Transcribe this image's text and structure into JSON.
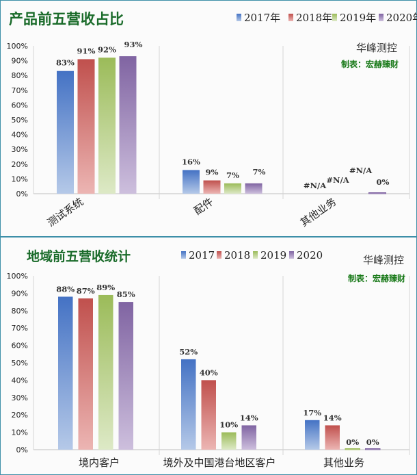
{
  "colors": {
    "s2017": [
      "#4472c4",
      "#b5c9e8"
    ],
    "s2018": [
      "#c0504d",
      "#ecb5b3"
    ],
    "s2019": [
      "#9bbb59",
      "#dde9c6"
    ],
    "s2020": [
      "#8064a2",
      "#cdbfdd"
    ],
    "title": "#1a6b2a",
    "maker": "#1a7a1a",
    "grid": "#d4d4d4"
  },
  "chart_data": [
    {
      "type": "bar",
      "title": "产品前五营收占比",
      "brand": "华峰测控",
      "maker": "制表：宏赫臻财",
      "categories": [
        "测试系统",
        "配件",
        "其他业务"
      ],
      "series": [
        {
          "name": "2017年",
          "values": [
            83,
            16,
            null
          ],
          "labels": [
            "83%",
            "16%",
            "#N/A"
          ]
        },
        {
          "name": "2018年",
          "values": [
            91,
            9,
            null
          ],
          "labels": [
            "91%",
            "9%",
            "#N/A"
          ]
        },
        {
          "name": "2019年",
          "values": [
            92,
            7,
            null
          ],
          "labels": [
            "92%",
            "7%",
            "#N/A"
          ]
        },
        {
          "name": "2020年",
          "values": [
            93,
            7,
            0
          ],
          "labels": [
            "93%",
            "7%",
            "0%"
          ]
        }
      ],
      "ylim": [
        0,
        100
      ],
      "yticks": [
        "0%",
        "10%",
        "20%",
        "30%",
        "40%",
        "50%",
        "60%",
        "70%",
        "80%",
        "90%",
        "100%"
      ],
      "legend": "top-right",
      "grid": "vertical category separators"
    },
    {
      "type": "bar",
      "title": "地域前五营收统计",
      "brand": "华峰测控",
      "maker": "制表：宏赫臻财",
      "categories": [
        "境内客户",
        "境外及中国港台地区客户",
        "其他业务"
      ],
      "series": [
        {
          "name": "2017",
          "values": [
            88,
            52,
            17
          ],
          "labels": [
            "88%",
            "52%",
            "17%"
          ]
        },
        {
          "name": "2018",
          "values": [
            87,
            40,
            14
          ],
          "labels": [
            "87%",
            "40%",
            "14%"
          ]
        },
        {
          "name": "2019",
          "values": [
            89,
            10,
            0
          ],
          "labels": [
            "89%",
            "10%",
            "0%"
          ]
        },
        {
          "name": "2020",
          "values": [
            85,
            14,
            0
          ],
          "labels": [
            "85%",
            "14%",
            "0%"
          ]
        }
      ],
      "ylim": [
        0,
        100
      ],
      "yticks": [
        "0%",
        "10%",
        "20%",
        "30%",
        "40%",
        "50%",
        "60%",
        "70%",
        "80%",
        "90%",
        "100%"
      ],
      "legend": "top-center",
      "grid": "vertical category separators"
    }
  ]
}
